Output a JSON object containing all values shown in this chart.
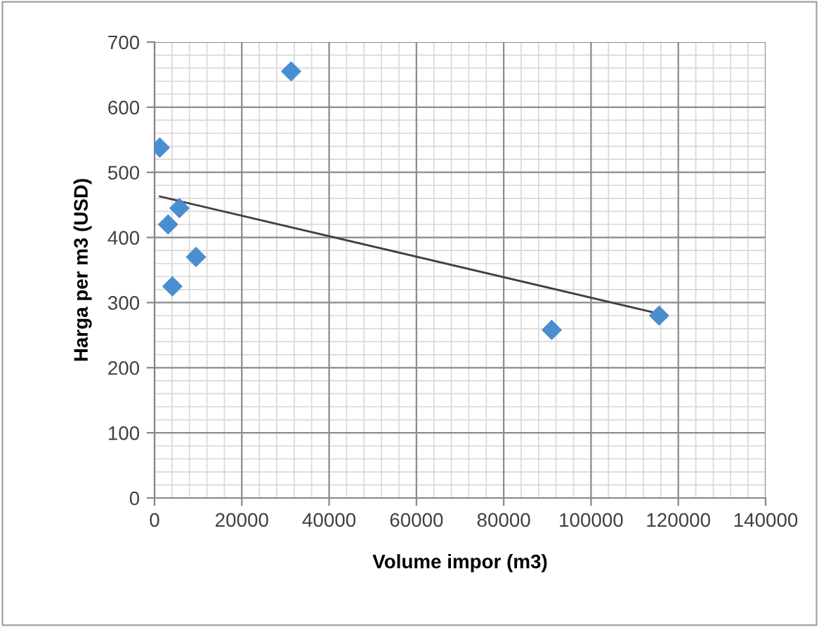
{
  "chart_data": {
    "type": "scatter",
    "xlabel": "Volume impor (m3)",
    "ylabel": "Harga per m3 (USD)",
    "x": [
      1200,
      31300,
      5700,
      3100,
      9500,
      4100,
      91000,
      115600
    ],
    "series": [
      {
        "color": "#4a8ed0",
        "marker": "diamond",
        "values": [
          538,
          655,
          445,
          420,
          370,
          325,
          258,
          280
        ]
      },
      {
        "type": "line",
        "color": "#404040",
        "x": [
          1200,
          115600
        ],
        "values": [
          463,
          283
        ]
      }
    ],
    "xlim": [
      0,
      140000
    ],
    "xticks": [
      0,
      20000,
      40000,
      60000,
      80000,
      100000,
      120000,
      140000
    ],
    "ylim": [
      0,
      700
    ],
    "yticks": [
      0,
      100,
      200,
      300,
      400,
      500,
      600,
      700
    ],
    "grid": true,
    "legend": false
  }
}
